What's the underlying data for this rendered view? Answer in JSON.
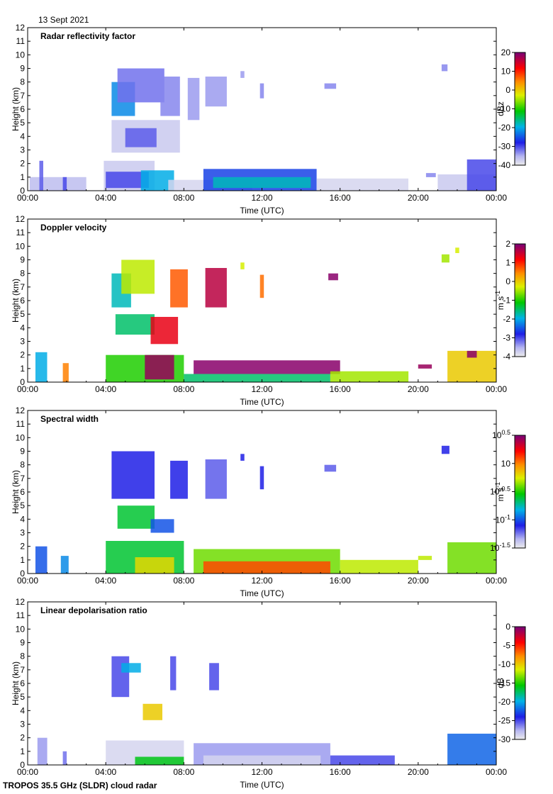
{
  "header": {
    "date": "13 Sept 2021"
  },
  "footer": {
    "instrument": "TROPOS 35.5 GHz (SLDR) cloud radar"
  },
  "chart_data": [
    {
      "type": "heatmap",
      "title": "Radar reflectivity factor",
      "xlabel": "Time (UTC)",
      "ylabel": "Height (km)",
      "x_ticks": [
        "00:00",
        "04:00",
        "08:00",
        "12:00",
        "16:00",
        "20:00",
        "00:00"
      ],
      "y_ticks": [
        "0",
        "1",
        "2",
        "3",
        "4",
        "5",
        "6",
        "7",
        "8",
        "9",
        "10",
        "11",
        "12"
      ],
      "xlim_hours": [
        0,
        24
      ],
      "ylim_km": [
        0,
        12
      ],
      "colorbar": {
        "unit": "dBz",
        "ticks": [
          "20",
          "10",
          "0",
          "-10",
          "-20",
          "-30",
          "-40"
        ],
        "range": [
          -40,
          20
        ]
      },
      "regions": [
        {
          "t0": 0.1,
          "t1": 3.0,
          "h0": 0.0,
          "h1": 1.0,
          "v": -36
        },
        {
          "t0": 0.6,
          "t1": 0.8,
          "h0": 0.0,
          "h1": 2.2,
          "v": -31
        },
        {
          "t0": 1.8,
          "t1": 2.0,
          "h0": 0.0,
          "h1": 1.0,
          "v": -30
        },
        {
          "t0": 3.9,
          "t1": 6.5,
          "h0": 0.0,
          "h1": 2.2,
          "v": -37
        },
        {
          "t0": 4.0,
          "t1": 6.2,
          "h0": 0.2,
          "h1": 1.4,
          "v": -30
        },
        {
          "t0": 5.8,
          "t1": 7.5,
          "h0": 0.0,
          "h1": 1.5,
          "v": -20
        },
        {
          "t0": 7.2,
          "t1": 11.5,
          "h0": 0.0,
          "h1": 0.8,
          "v": -38
        },
        {
          "t0": 9.0,
          "t1": 14.8,
          "h0": 0.0,
          "h1": 1.6,
          "v": -26
        },
        {
          "t0": 9.5,
          "t1": 14.5,
          "h0": 0.2,
          "h1": 1.0,
          "v": -18
        },
        {
          "t0": 14.8,
          "t1": 19.5,
          "h0": 0.0,
          "h1": 0.9,
          "v": -38
        },
        {
          "t0": 4.3,
          "t1": 7.8,
          "h0": 2.8,
          "h1": 5.2,
          "v": -37
        },
        {
          "t0": 5.0,
          "t1": 6.6,
          "h0": 3.2,
          "h1": 4.6,
          "v": -31
        },
        {
          "t0": 4.3,
          "t1": 5.5,
          "h0": 5.5,
          "h1": 8.0,
          "v": -22
        },
        {
          "t0": 4.6,
          "t1": 7.0,
          "h0": 6.5,
          "h1": 9.0,
          "v": -32
        },
        {
          "t0": 6.8,
          "t1": 7.8,
          "h0": 5.5,
          "h1": 8.4,
          "v": -33
        },
        {
          "t0": 8.2,
          "t1": 8.8,
          "h0": 5.2,
          "h1": 8.3,
          "v": -34
        },
        {
          "t0": 9.1,
          "t1": 10.2,
          "h0": 6.2,
          "h1": 8.4,
          "v": -34
        },
        {
          "t0": 10.9,
          "t1": 11.1,
          "h0": 8.3,
          "h1": 8.8,
          "v": -34
        },
        {
          "t0": 11.9,
          "t1": 12.1,
          "h0": 6.8,
          "h1": 7.9,
          "v": -33
        },
        {
          "t0": 15.2,
          "t1": 15.8,
          "h0": 7.5,
          "h1": 7.9,
          "v": -33
        },
        {
          "t0": 20.4,
          "t1": 20.9,
          "h0": 1.0,
          "h1": 1.3,
          "v": -33
        },
        {
          "t0": 21.2,
          "t1": 21.5,
          "h0": 8.8,
          "h1": 9.3,
          "v": -33
        },
        {
          "t0": 21.0,
          "t1": 24.0,
          "h0": 0.0,
          "h1": 1.2,
          "v": -37
        },
        {
          "t0": 22.5,
          "t1": 24.0,
          "h0": 0.0,
          "h1": 2.3,
          "v": -30
        }
      ]
    },
    {
      "type": "heatmap",
      "title": "Doppler velocity",
      "xlabel": "Time (UTC)",
      "ylabel": "Height (km)",
      "x_ticks": [
        "00:00",
        "04:00",
        "08:00",
        "12:00",
        "16:00",
        "20:00",
        "00:00"
      ],
      "y_ticks": [
        "0",
        "1",
        "2",
        "3",
        "4",
        "5",
        "6",
        "7",
        "8",
        "9",
        "10",
        "11",
        "12"
      ],
      "xlim_hours": [
        0,
        24
      ],
      "ylim_km": [
        0,
        12
      ],
      "colorbar": {
        "unit": "m s-1",
        "unit_base": "m s",
        "unit_sup": "-1",
        "ticks": [
          "2",
          "1",
          "0",
          "-1",
          "-2",
          "-3",
          "-4"
        ],
        "range": [
          -4,
          2
        ]
      },
      "regions": [
        {
          "t0": 0.4,
          "t1": 1.0,
          "h0": 0.0,
          "h1": 2.2,
          "v": -2.0
        },
        {
          "t0": 1.8,
          "t1": 2.1,
          "h0": 0.0,
          "h1": 1.4,
          "v": 0.5
        },
        {
          "t0": 4.0,
          "t1": 8.0,
          "h0": 0.0,
          "h1": 2.0,
          "v": -1.0
        },
        {
          "t0": 6.0,
          "t1": 7.5,
          "h0": 0.2,
          "h1": 2.0,
          "v": 1.8
        },
        {
          "t0": 8.0,
          "t1": 15.5,
          "h0": 0.0,
          "h1": 0.6,
          "v": -1.5
        },
        {
          "t0": 8.5,
          "t1": 16.0,
          "h0": 0.6,
          "h1": 1.6,
          "v": 1.9
        },
        {
          "t0": 15.5,
          "t1": 19.5,
          "h0": 0.0,
          "h1": 0.8,
          "v": -0.5
        },
        {
          "t0": 20.0,
          "t1": 20.7,
          "h0": 1.0,
          "h1": 1.3,
          "v": 1.8
        },
        {
          "t0": 21.5,
          "t1": 24.0,
          "h0": 0.0,
          "h1": 2.3,
          "v": 0.0
        },
        {
          "t0": 22.5,
          "t1": 23.0,
          "h0": 1.8,
          "h1": 2.3,
          "v": 1.9
        },
        {
          "t0": 4.5,
          "t1": 6.5,
          "h0": 3.5,
          "h1": 5.0,
          "v": -1.5
        },
        {
          "t0": 6.3,
          "t1": 7.7,
          "h0": 2.8,
          "h1": 4.8,
          "v": 1.3
        },
        {
          "t0": 4.3,
          "t1": 5.3,
          "h0": 5.5,
          "h1": 8.0,
          "v": -1.8
        },
        {
          "t0": 4.8,
          "t1": 6.5,
          "h0": 6.5,
          "h1": 9.0,
          "v": -0.4
        },
        {
          "t0": 7.3,
          "t1": 8.2,
          "h0": 5.5,
          "h1": 8.3,
          "v": 0.7
        },
        {
          "t0": 9.1,
          "t1": 10.2,
          "h0": 5.5,
          "h1": 8.4,
          "v": 1.6
        },
        {
          "t0": 10.9,
          "t1": 11.1,
          "h0": 8.3,
          "h1": 8.8,
          "v": -0.3
        },
        {
          "t0": 11.9,
          "t1": 12.1,
          "h0": 6.2,
          "h1": 7.9,
          "v": 0.6
        },
        {
          "t0": 15.4,
          "t1": 15.9,
          "h0": 7.5,
          "h1": 8.0,
          "v": 1.9
        },
        {
          "t0": 21.2,
          "t1": 21.6,
          "h0": 8.8,
          "h1": 9.4,
          "v": -0.5
        },
        {
          "t0": 21.9,
          "t1": 22.1,
          "h0": 9.5,
          "h1": 9.9,
          "v": -0.3
        }
      ]
    },
    {
      "type": "heatmap",
      "title": "Spectral width",
      "xlabel": "Time (UTC)",
      "ylabel": "Height (km)",
      "x_ticks": [
        "00:00",
        "04:00",
        "08:00",
        "12:00",
        "16:00",
        "20:00",
        "00:00"
      ],
      "y_ticks": [
        "0",
        "1",
        "2",
        "3",
        "4",
        "5",
        "6",
        "7",
        "8",
        "9",
        "10",
        "11",
        "12"
      ],
      "xlim_hours": [
        0,
        24
      ],
      "ylim_km": [
        0,
        12
      ],
      "colorbar": {
        "unit": "m s-1",
        "unit_base": "m s",
        "unit_sup": "-1",
        "ticks": [
          {
            "base": "10",
            "exp": "0.5"
          },
          {
            "base": "10",
            "exp": ""
          },
          {
            "base": "10",
            "exp": "-0.5"
          },
          {
            "base": "10",
            "exp": "-1"
          },
          {
            "base": "10",
            "exp": "-1.5"
          }
        ],
        "range_log10": [
          -1.5,
          0.5
        ]
      },
      "regions": [
        {
          "t0": 0.4,
          "t1": 1.0,
          "h0": 0.0,
          "h1": 2.0,
          "v": -1.0
        },
        {
          "t0": 1.7,
          "t1": 2.1,
          "h0": 0.0,
          "h1": 1.3,
          "v": -0.9
        },
        {
          "t0": 4.0,
          "t1": 8.0,
          "h0": 0.0,
          "h1": 2.4,
          "v": -0.6
        },
        {
          "t0": 5.5,
          "t1": 7.5,
          "h0": 0.0,
          "h1": 1.2,
          "v": -0.2
        },
        {
          "t0": 8.5,
          "t1": 16.0,
          "h0": 0.0,
          "h1": 1.8,
          "v": -0.4
        },
        {
          "t0": 9.0,
          "t1": 15.5,
          "h0": 0.0,
          "h1": 0.9,
          "v": 0.1
        },
        {
          "t0": 16.0,
          "t1": 20.0,
          "h0": 0.0,
          "h1": 1.0,
          "v": -0.3
        },
        {
          "t0": 21.5,
          "t1": 24.0,
          "h0": 0.0,
          "h1": 2.3,
          "v": -0.4
        },
        {
          "t0": 20.0,
          "t1": 20.7,
          "h0": 1.0,
          "h1": 1.3,
          "v": -0.3
        },
        {
          "t0": 4.6,
          "t1": 6.5,
          "h0": 3.3,
          "h1": 5.0,
          "v": -0.6
        },
        {
          "t0": 6.3,
          "t1": 7.5,
          "h0": 3.0,
          "h1": 4.0,
          "v": -1.0
        },
        {
          "t0": 4.3,
          "t1": 6.5,
          "h0": 5.5,
          "h1": 9.0,
          "v": -1.1
        },
        {
          "t0": 7.3,
          "t1": 8.2,
          "h0": 5.5,
          "h1": 8.3,
          "v": -1.1
        },
        {
          "t0": 9.1,
          "t1": 10.2,
          "h0": 5.5,
          "h1": 8.4,
          "v": -1.2
        },
        {
          "t0": 10.9,
          "t1": 11.1,
          "h0": 8.3,
          "h1": 8.8,
          "v": -1.1
        },
        {
          "t0": 11.9,
          "t1": 12.1,
          "h0": 6.2,
          "h1": 7.9,
          "v": -1.1
        },
        {
          "t0": 15.2,
          "t1": 15.8,
          "h0": 7.5,
          "h1": 8.0,
          "v": -1.2
        },
        {
          "t0": 21.2,
          "t1": 21.6,
          "h0": 8.8,
          "h1": 9.4,
          "v": -1.1
        }
      ]
    },
    {
      "type": "heatmap",
      "title": "Linear depolarisation ratio",
      "xlabel": "Time (UTC)",
      "ylabel": "Height (km)",
      "x_ticks": [
        "00:00",
        "04:00",
        "08:00",
        "12:00",
        "16:00",
        "20:00",
        "00:00"
      ],
      "y_ticks": [
        "0",
        "1",
        "2",
        "3",
        "4",
        "5",
        "6",
        "7",
        "8",
        "9",
        "10",
        "11",
        "12"
      ],
      "xlim_hours": [
        0,
        24
      ],
      "ylim_km": [
        0,
        12
      ],
      "colorbar": {
        "unit": "dB",
        "ticks": [
          "0",
          "-5",
          "-10",
          "-15",
          "-20",
          "-25",
          "-30"
        ],
        "range": [
          -30,
          0
        ]
      },
      "regions": [
        {
          "t0": 0.5,
          "t1": 1.0,
          "h0": 0.0,
          "h1": 2.0,
          "v": -27
        },
        {
          "t0": 1.8,
          "t1": 2.0,
          "h0": 0.0,
          "h1": 1.0,
          "v": -26
        },
        {
          "t0": 4.0,
          "t1": 8.0,
          "h0": 0.0,
          "h1": 1.8,
          "v": -29
        },
        {
          "t0": 5.5,
          "t1": 8.0,
          "h0": 0.0,
          "h1": 0.6,
          "v": -16
        },
        {
          "t0": 8.5,
          "t1": 15.5,
          "h0": 0.0,
          "h1": 1.6,
          "v": -27
        },
        {
          "t0": 9.0,
          "t1": 15.0,
          "h0": 0.0,
          "h1": 0.7,
          "v": -29
        },
        {
          "t0": 15.5,
          "t1": 18.8,
          "h0": 0.0,
          "h1": 0.7,
          "v": -25
        },
        {
          "t0": 21.5,
          "t1": 24.0,
          "h0": 0.0,
          "h1": 2.3,
          "v": -22
        },
        {
          "t0": 4.3,
          "t1": 5.2,
          "h0": 5.0,
          "h1": 8.0,
          "v": -25
        },
        {
          "t0": 4.8,
          "t1": 5.8,
          "h0": 6.8,
          "h1": 7.5,
          "v": -20
        },
        {
          "t0": 5.9,
          "t1": 6.9,
          "h0": 3.3,
          "h1": 4.5,
          "v": -10
        },
        {
          "t0": 7.3,
          "t1": 7.6,
          "h0": 5.5,
          "h1": 8.0,
          "v": -25
        },
        {
          "t0": 9.3,
          "t1": 9.8,
          "h0": 5.5,
          "h1": 7.5,
          "v": -25
        }
      ]
    }
  ]
}
